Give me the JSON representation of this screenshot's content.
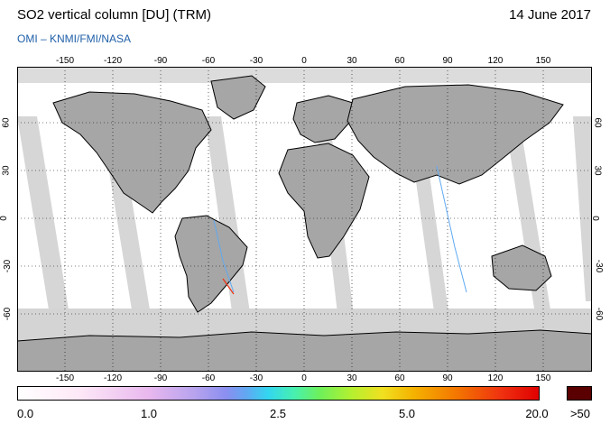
{
  "header": {
    "title": "SO2 vertical column [DU] (TRM)",
    "date": "14 June 2017",
    "credit": "OMI  –  KNMI/FMI/NASA"
  },
  "axes": {
    "lon_ticks": [
      "-150",
      "-120",
      "-90",
      "-60",
      "-30",
      "0",
      "30",
      "60",
      "90",
      "120",
      "150"
    ],
    "lat_ticks": [
      "60",
      "30",
      "0",
      "-30",
      "-60"
    ]
  },
  "colorbar": {
    "labels": [
      "0.0",
      "1.0",
      "2.5",
      "5.0",
      "20.0"
    ],
    "max_label": ">50"
  },
  "colors": {
    "land": "#a6a6a6",
    "no_data": "#d6d6d6",
    "ocean": "#ffffff",
    "coast": "#000000",
    "credit": "#1f5fa8",
    "max_swatch": "#5a0000"
  }
}
